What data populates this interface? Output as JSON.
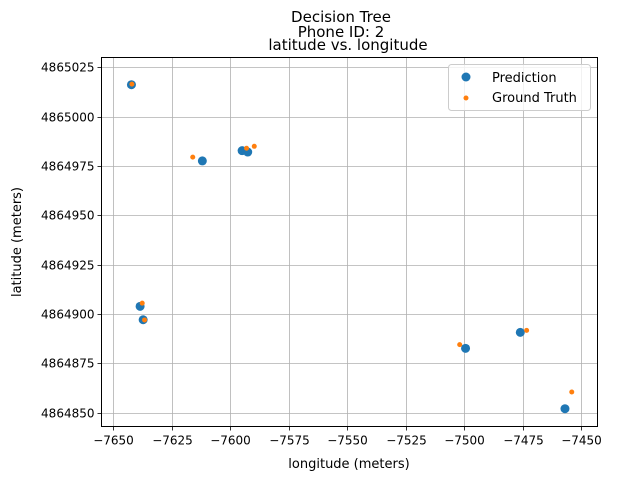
{
  "chart_data": {
    "type": "scatter",
    "title_lines": [
      "Decision Tree",
      "Phone ID: 2"
    ],
    "subtitle": "latitude vs. longitude",
    "xlabel": "longitude (meters)",
    "ylabel": "latitude (meters)",
    "xlim": [
      -7655,
      -7443
    ],
    "ylim": [
      4864843,
      4865030
    ],
    "xticks": [
      -7650,
      -7625,
      -7600,
      -7575,
      -7550,
      -7525,
      -7500,
      -7475,
      -7450
    ],
    "yticks": [
      4864850,
      4864875,
      4864900,
      4864925,
      4864950,
      4864975,
      4865000,
      4865025
    ],
    "xtick_labels": [
      "−7650",
      "−7625",
      "−7600",
      "−7575",
      "−7550",
      "−7525",
      "−7500",
      "−7475",
      "−7450"
    ],
    "ytick_labels": [
      "4864850",
      "4864875",
      "4864900",
      "4864925",
      "4864950",
      "4864975",
      "4865000",
      "4865025"
    ],
    "grid": true,
    "legend_position": "top-right",
    "series": [
      {
        "name": "Prediction",
        "color": "#1f77b4",
        "marker": "large-dot",
        "points": [
          [
            -7642.2,
            4865016.2
          ],
          [
            -7611.9,
            4864977.6
          ],
          [
            -7594.9,
            4864982.8
          ],
          [
            -7592.5,
            4864982.1
          ],
          [
            -7638.5,
            4864903.9
          ],
          [
            -7637.2,
            4864897.1
          ],
          [
            -7499.4,
            4864882.6
          ],
          [
            -7476.0,
            4864890.7
          ],
          [
            -7456.9,
            4864852.0
          ]
        ]
      },
      {
        "name": "Ground Truth",
        "color": "#ff7f0e",
        "marker": "small-dot",
        "points": [
          [
            -7642.0,
            4865016.5
          ],
          [
            -7616.0,
            4864979.5
          ],
          [
            -7593.0,
            4864984.0
          ],
          [
            -7589.7,
            4864985.0
          ],
          [
            -7637.6,
            4864905.5
          ],
          [
            -7636.6,
            4864897.0
          ],
          [
            -7501.9,
            4864884.5
          ],
          [
            -7473.3,
            4864891.7
          ],
          [
            -7454.0,
            4864860.5
          ]
        ]
      }
    ]
  }
}
